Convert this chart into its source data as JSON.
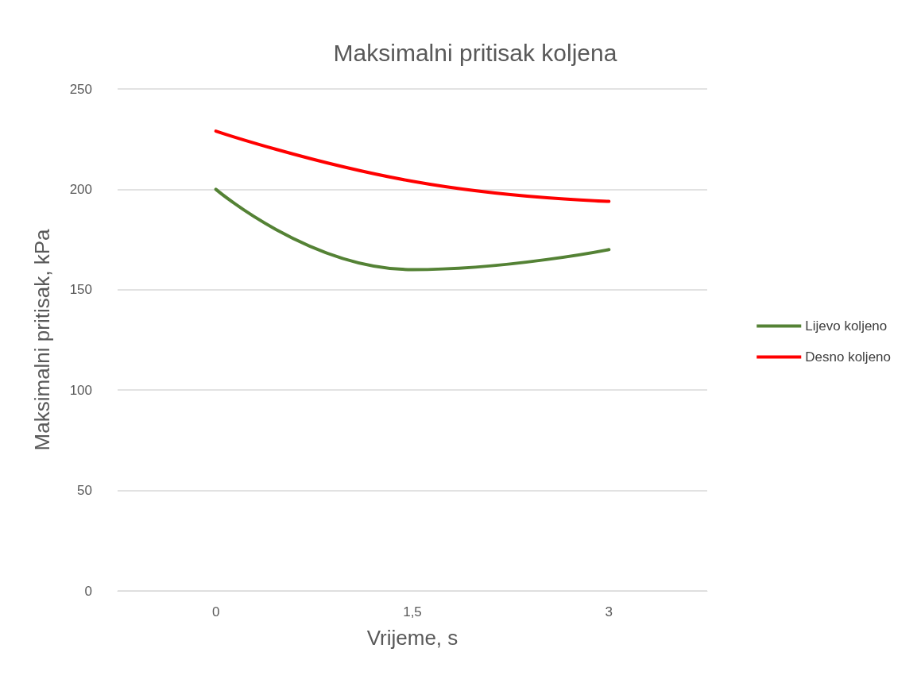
{
  "chart_data": {
    "type": "line",
    "title": "Maksimalni pritisak koljena",
    "xlabel": "Vrijeme, s",
    "ylabel": "Maksimalni pritisak, kPa",
    "categories": [
      "0",
      "1,5",
      "3"
    ],
    "series": [
      {
        "name": "Lijevo koljeno",
        "color": "#548235",
        "values": [
          200,
          160,
          170
        ]
      },
      {
        "name": "Desno koljeno",
        "color": "#ff0000",
        "values": [
          229,
          204,
          194
        ]
      }
    ],
    "ylim": [
      0,
      250
    ],
    "yticks": [
      0,
      50,
      100,
      150,
      200,
      250
    ],
    "grid": "y",
    "legend": "right",
    "marker": "none"
  }
}
